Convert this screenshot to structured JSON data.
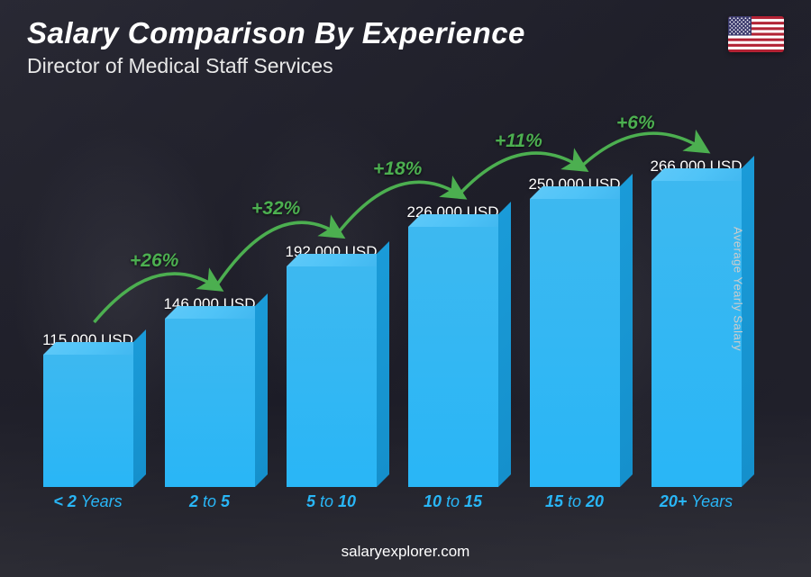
{
  "header": {
    "title": "Salary Comparison By Experience",
    "subtitle": "Director of Medical Staff Services"
  },
  "flag": {
    "country": "usa",
    "stripe_red": "#b22234",
    "stripe_white": "#ffffff",
    "canton_blue": "#3c3b6e"
  },
  "chart": {
    "type": "bar",
    "bar_color": "#29b6f6",
    "bar_top_color": "#4fc3f7",
    "bar_side_color": "#1590cc",
    "accent_green": "#4caf50",
    "background_dark": "#1a1a25",
    "text_white": "#ffffff",
    "label_fontsize": 17,
    "xlabel_fontsize": 18,
    "max_value": 266000,
    "bars": [
      {
        "value": 115000,
        "label": "115,000 USD",
        "xlabel_pre": "< 2",
        "xlabel_suf": " Years"
      },
      {
        "value": 146000,
        "label": "146,000 USD",
        "xlabel_pre": "2",
        "xlabel_mid": " to ",
        "xlabel_suf": "5"
      },
      {
        "value": 192000,
        "label": "192,000 USD",
        "xlabel_pre": "5",
        "xlabel_mid": " to ",
        "xlabel_suf": "10"
      },
      {
        "value": 226000,
        "label": "226,000 USD",
        "xlabel_pre": "10",
        "xlabel_mid": " to ",
        "xlabel_suf": "15"
      },
      {
        "value": 250000,
        "label": "250,000 USD",
        "xlabel_pre": "15",
        "xlabel_mid": " to ",
        "xlabel_suf": "20"
      },
      {
        "value": 266000,
        "label": "266,000 USD",
        "xlabel_pre": "20+",
        "xlabel_suf": " Years"
      }
    ],
    "arcs": [
      {
        "label": "+26%",
        "from": 0,
        "to": 1
      },
      {
        "label": "+32%",
        "from": 1,
        "to": 2
      },
      {
        "label": "+18%",
        "from": 2,
        "to": 3
      },
      {
        "label": "+11%",
        "from": 3,
        "to": 4
      },
      {
        "label": "+6%",
        "from": 4,
        "to": 5
      }
    ]
  },
  "y_axis_label": "Average Yearly Salary",
  "footer": "salaryexplorer.com"
}
